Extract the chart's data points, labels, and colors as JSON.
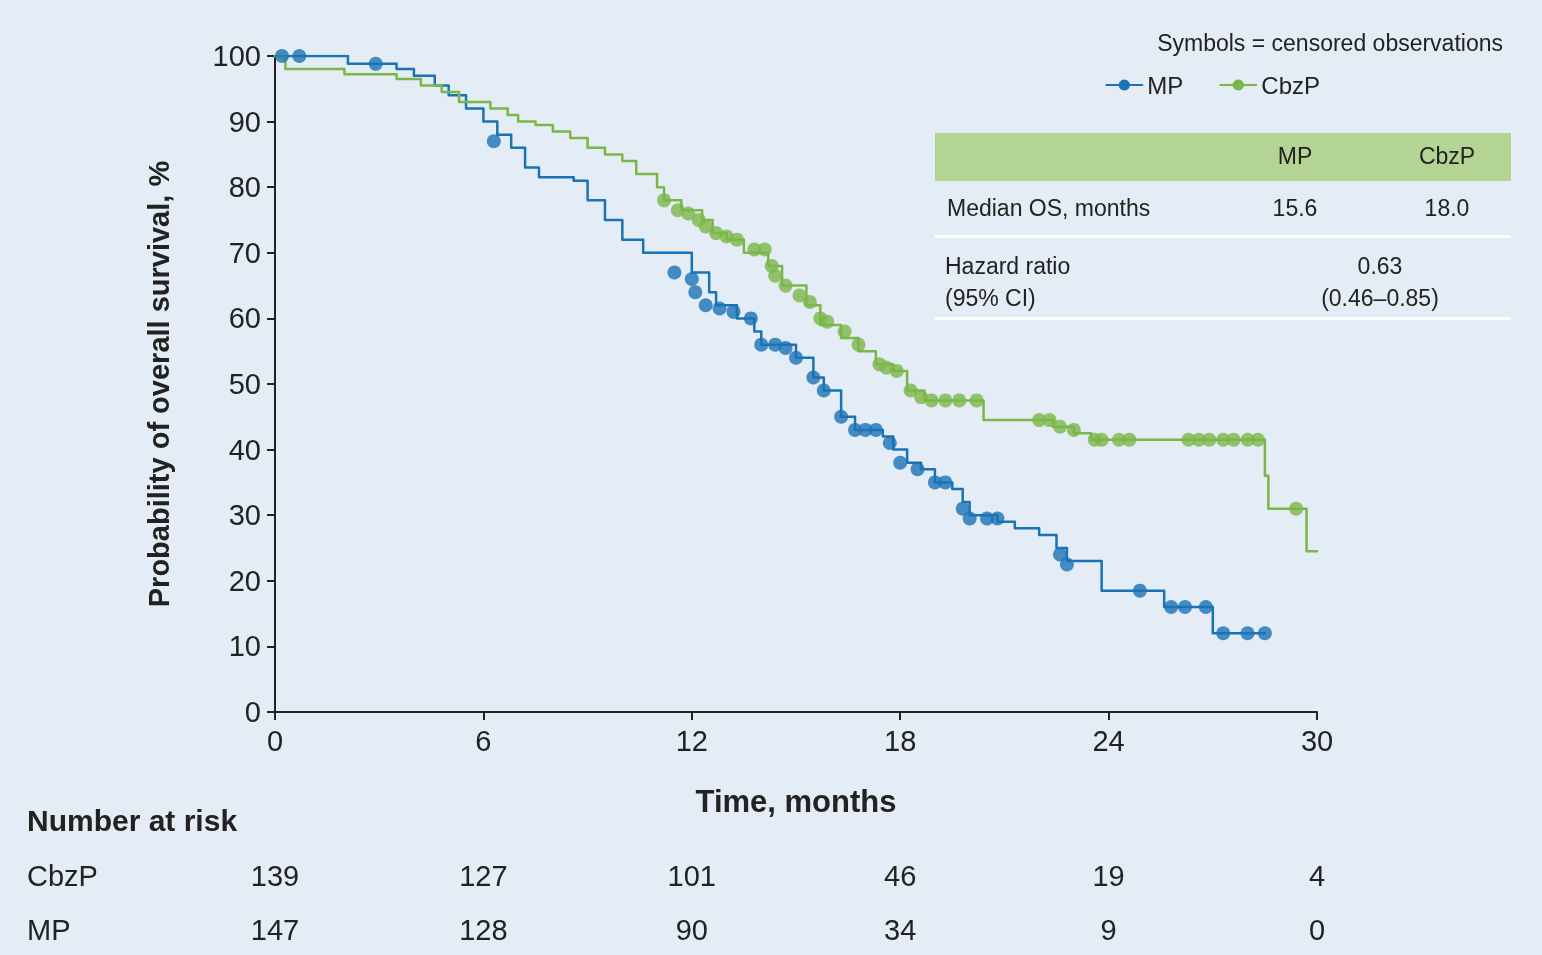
{
  "chart_data": {
    "type": "step",
    "xlabel": "Time, months",
    "ylabel": "Probability of overall survival, %",
    "legend_title": "Symbols = censored observations",
    "xlim": [
      0,
      30
    ],
    "xticks": [
      0,
      6,
      12,
      18,
      24,
      30
    ],
    "ylim": [
      0,
      100
    ],
    "yticks": [
      0,
      10,
      20,
      30,
      40,
      50,
      60,
      70,
      80,
      90,
      100
    ],
    "grid": false,
    "legend": "top right",
    "line_style": "solid",
    "series": [
      {
        "name": "MP",
        "color": "#1a73b5",
        "x": [
          0,
          2.1,
          3.5,
          4.0,
          4.6,
          5.0,
          5.5,
          6.0,
          6.4,
          6.8,
          7.2,
          7.6,
          8.6,
          9.0,
          9.5,
          10.0,
          10.6,
          11.8,
          12.0,
          12.5,
          12.7,
          13.3,
          13.8,
          14.0,
          15.0,
          15.5,
          15.8,
          16.3,
          16.7,
          17.5,
          17.8,
          18.2,
          18.6,
          19.0,
          19.5,
          19.8,
          20.0,
          20.8,
          21.3,
          22.0,
          22.5,
          22.8,
          23.8,
          25.6,
          27.0,
          28.5
        ],
        "values": [
          100,
          98.8,
          98,
          97,
          95.5,
          94,
          92,
          90,
          88,
          86,
          83,
          81.5,
          81,
          78,
          75,
          72,
          70,
          70,
          67,
          64,
          62,
          60,
          58,
          56,
          54,
          51,
          49,
          45,
          43,
          42,
          40,
          38,
          37,
          35,
          34,
          32,
          30,
          29,
          28,
          27,
          25,
          23,
          18.5,
          16,
          12,
          12
        ]
      },
      {
        "name": "CbzP",
        "color": "#7ab648",
        "x": [
          0,
          0.3,
          2.0,
          3.5,
          4.2,
          4.8,
          5.3,
          6.2,
          6.7,
          7.0,
          7.5,
          8.0,
          8.5,
          9.0,
          9.5,
          10.0,
          10.4,
          11.0,
          11.2,
          11.7,
          12.3,
          12.6,
          13.0,
          13.5,
          14.2,
          14.6,
          15.3,
          15.7,
          16.3,
          16.8,
          17.3,
          17.8,
          18.2,
          18.7,
          20.4,
          22.4,
          23.0,
          23.5,
          28.5,
          28.6,
          29.7,
          30.0
        ],
        "values": [
          100,
          98,
          97.2,
          96.5,
          95.5,
          94.5,
          93,
          92,
          91,
          90,
          89.5,
          88.5,
          87.5,
          86,
          85,
          84,
          82,
          80,
          78,
          76.5,
          75,
          73,
          72,
          70,
          68,
          65,
          62,
          59,
          57,
          55,
          53,
          52,
          49,
          47.5,
          44.5,
          43.5,
          42.5,
          41.5,
          36,
          31,
          24.5,
          24.5
        ]
      },
      {
        "type": "scatter",
        "color": "#1a73b5",
        "x": [
          0.2,
          0.7,
          2.9,
          6.3,
          11.5,
          12.0,
          12.1,
          12.4,
          12.8,
          13.2,
          13.7,
          14.0,
          14.4,
          14.7,
          15.0,
          15.5,
          15.8,
          16.3,
          16.7,
          17.0,
          17.3,
          17.7,
          18.0,
          18.5,
          19.0,
          19.3,
          19.8,
          20.0,
          20.5,
          20.8,
          22.6,
          22.8,
          24.9,
          25.8,
          26.2,
          26.8,
          27.3,
          28.0,
          28.5
        ],
        "values": [
          100,
          100,
          98.8,
          87,
          67,
          66,
          64,
          62,
          61.5,
          61,
          60,
          56,
          56,
          55.5,
          54,
          51,
          49,
          45,
          43,
          43,
          43,
          41,
          38,
          37,
          35,
          35,
          31,
          29.5,
          29.5,
          29.5,
          24,
          22.5,
          18.5,
          16,
          16,
          16,
          12,
          12,
          12
        ]
      },
      {
        "type": "scatter",
        "color": "#7ab648",
        "x": [
          11.2,
          11.6,
          11.9,
          12.2,
          12.4,
          12.7,
          13.0,
          13.3,
          13.8,
          14.1,
          14.3,
          14.4,
          14.7,
          15.1,
          15.4,
          15.7,
          15.9,
          16.4,
          16.8,
          17.4,
          17.6,
          17.9,
          18.3,
          18.6,
          18.9,
          19.3,
          19.7,
          20.2,
          22.0,
          22.3,
          22.6,
          23.0,
          23.6,
          23.8,
          24.3,
          24.6,
          26.3,
          26.6,
          26.9,
          27.3,
          27.6,
          28.0,
          28.3,
          29.4
        ],
        "values": [
          78,
          76.5,
          76,
          75,
          74,
          73,
          72.5,
          72,
          70.5,
          70.5,
          68,
          66.5,
          65,
          63.5,
          62.5,
          60,
          59.5,
          58,
          56,
          53,
          52.5,
          52,
          49,
          48,
          47.5,
          47.5,
          47.5,
          47.5,
          44.5,
          44.5,
          43.5,
          43,
          41.5,
          41.5,
          41.5,
          41.5,
          41.5,
          41.5,
          41.5,
          41.5,
          41.5,
          41.5,
          41.5,
          31
        ]
      }
    ],
    "annotations": [
      "MP",
      "CbzP",
      "Median OS, months",
      "15.6",
      "18.0",
      "Hazard ratio\n(95% CI)",
      "0.63\n(0.46–0.85)",
      "Number at risk",
      "CbzP",
      "139",
      "127",
      "101",
      "46",
      "19",
      "4",
      "MP",
      "147",
      "128",
      "90",
      "34",
      "9",
      "0"
    ]
  }
}
